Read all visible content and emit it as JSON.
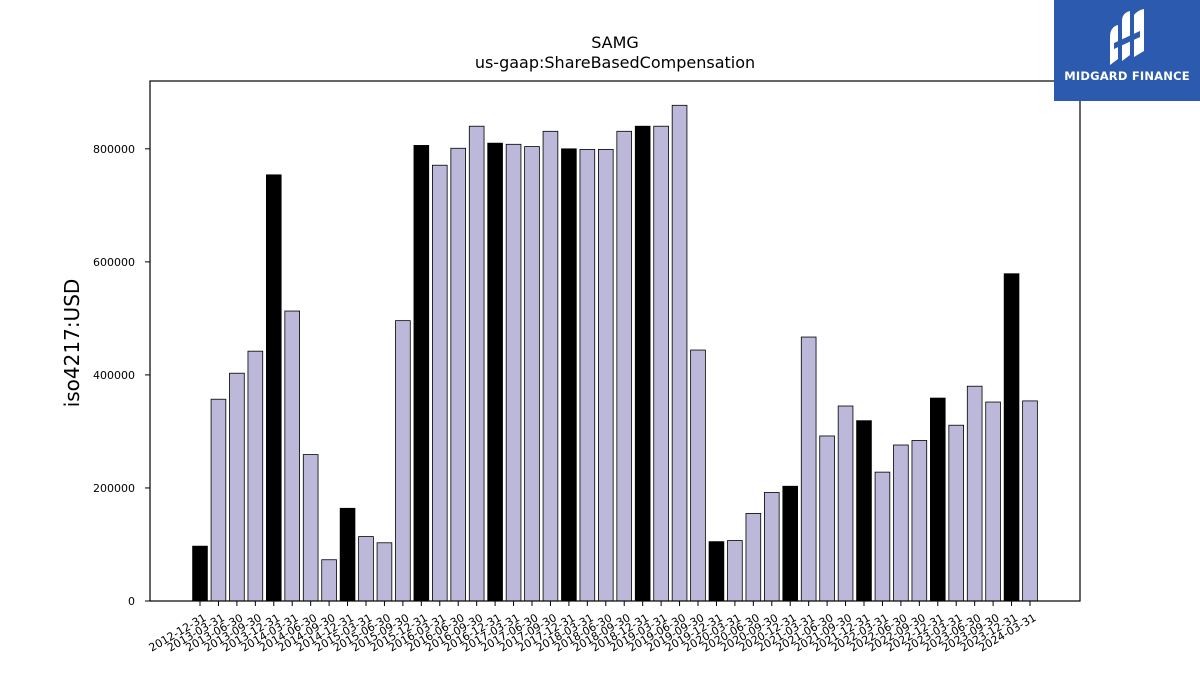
{
  "chart_data": {
    "type": "bar",
    "title": "SAMG",
    "subtitle": "us-gaap:ShareBasedCompensation",
    "xlabel": "",
    "ylabel": "iso4217:USD",
    "ylim": [
      0,
      920000
    ],
    "yticks": [
      0,
      200000,
      400000,
      600000,
      800000
    ],
    "grid": false,
    "colors": {
      "default": "#bcb8d9",
      "highlight": "#000000",
      "edge": "#000000"
    },
    "categories": [
      "2012-12-31",
      "2013-03-31",
      "2013-06-30",
      "2013-09-30",
      "2013-12-31",
      "2014-03-31",
      "2014-06-30",
      "2014-09-30",
      "2014-12-31",
      "2015-03-31",
      "2015-06-30",
      "2015-09-30",
      "2015-12-31",
      "2016-03-31",
      "2016-06-30",
      "2016-09-30",
      "2016-12-31",
      "2017-03-31",
      "2017-06-30",
      "2017-09-30",
      "2017-12-31",
      "2018-03-31",
      "2018-06-30",
      "2018-09-30",
      "2018-12-31",
      "2019-03-31",
      "2019-06-30",
      "2019-09-30",
      "2019-12-31",
      "2020-03-31",
      "2020-06-30",
      "2020-09-30",
      "2020-12-31",
      "2021-03-31",
      "2021-06-30",
      "2021-09-30",
      "2021-12-31",
      "2022-03-31",
      "2022-06-30",
      "2022-09-30",
      "2022-12-31",
      "2023-03-31",
      "2023-06-30",
      "2023-09-30",
      "2023-12-31",
      "2024-03-31"
    ],
    "values": [
      97000,
      357000,
      403000,
      442000,
      754000,
      513000,
      259000,
      73000,
      164000,
      114000,
      103000,
      496000,
      806000,
      771000,
      801000,
      840000,
      810000,
      808000,
      804000,
      831000,
      800000,
      799000,
      799000,
      831000,
      840000,
      840000,
      877000,
      444000,
      105000,
      107000,
      155000,
      192000,
      203000,
      467000,
      292000,
      345000,
      319000,
      228000,
      276000,
      284000,
      359000,
      311000,
      380000,
      352000,
      579000,
      354000
    ],
    "highlighted": [
      true,
      false,
      false,
      false,
      true,
      false,
      false,
      false,
      true,
      false,
      false,
      false,
      true,
      false,
      false,
      false,
      true,
      false,
      false,
      false,
      true,
      false,
      false,
      false,
      true,
      false,
      false,
      false,
      true,
      false,
      false,
      false,
      true,
      false,
      false,
      false,
      true,
      false,
      false,
      false,
      true,
      false,
      false,
      false,
      true,
      false
    ]
  },
  "logo": {
    "text": "MIDGARD FINANCE",
    "icon": "midgard-logo-icon",
    "background": "#2b5aae"
  }
}
